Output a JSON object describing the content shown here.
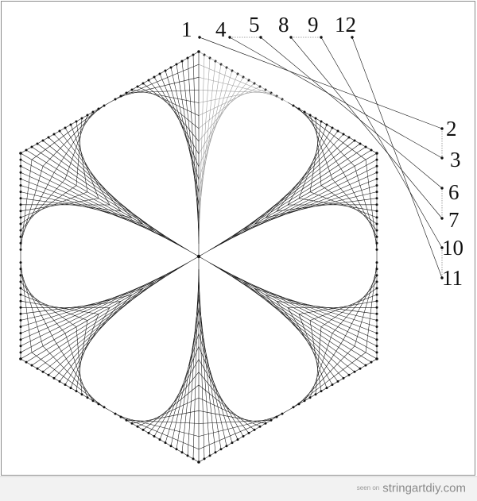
{
  "diagram": {
    "title": "",
    "sequence_top": [
      "1",
      "4",
      "5",
      "8",
      "9",
      "12"
    ],
    "sequence_right": [
      "2",
      "3",
      "6",
      "7",
      "10",
      "11"
    ],
    "colors": {
      "thread": "#111111",
      "highlight_thread": "#9a9a9a",
      "frame": "#888888",
      "background": "#ffffff"
    }
  },
  "footer": {
    "prefix": "seen on",
    "site": "stringartdiy.com"
  }
}
